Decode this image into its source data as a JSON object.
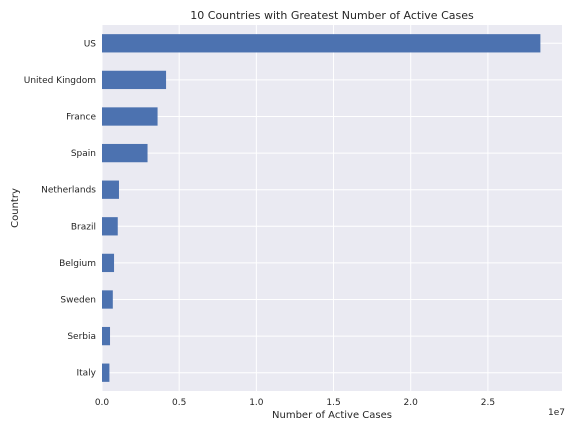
{
  "chart_data": {
    "type": "bar",
    "orientation": "horizontal",
    "title": "10 Countries with Greatest Number of Active Cases",
    "xlabel": "Number of Active Cases",
    "ylabel": "Country",
    "x_offset_label": "1e7",
    "categories": [
      "US",
      "United Kingdom",
      "France",
      "Spain",
      "Netherlands",
      "Brazil",
      "Belgium",
      "Sweden",
      "Serbia",
      "Italy"
    ],
    "series": [
      {
        "values": [
          28400000,
          4150000,
          3600000,
          2950000,
          1100000,
          1020000,
          780000,
          700000,
          520000,
          480000
        ],
        "color": "#4c72b0"
      }
    ],
    "xlim": [
      0,
      29800000
    ],
    "xticks": [
      0,
      5000000,
      10000000,
      15000000,
      20000000,
      25000000
    ],
    "xtick_labels": [
      "0.0",
      "0.5",
      "1.0",
      "1.5",
      "2.0",
      "2.5"
    ],
    "grid": true,
    "background_color": "#eaeaf2",
    "grid_color": "#ffffff"
  }
}
